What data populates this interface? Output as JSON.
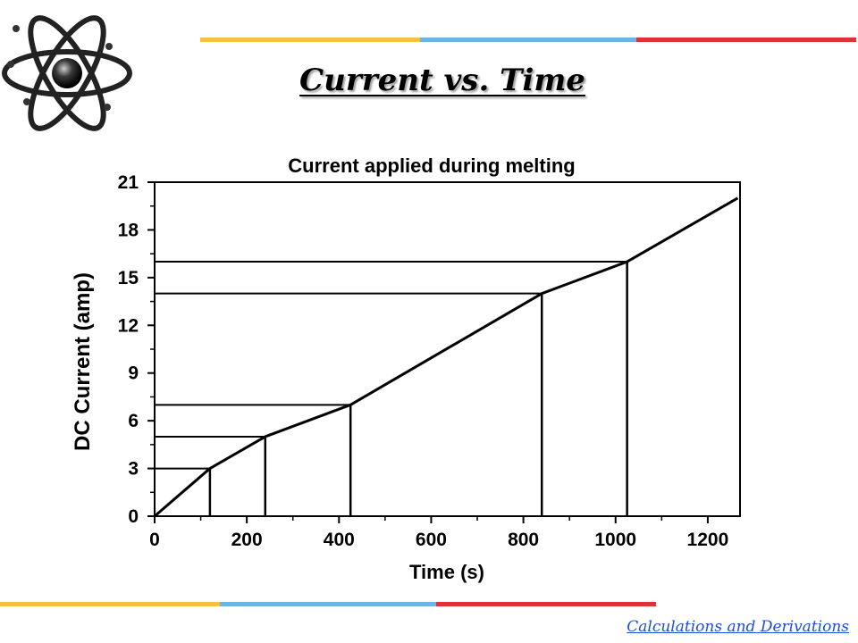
{
  "slide": {
    "title": "Current  vs. Time",
    "footer": "Calculations and Derivations",
    "accent_colors": {
      "yellow": "#f5c342",
      "blue": "#6bb7e2",
      "red": "#e2303a"
    },
    "logo_icon": "atom-icon"
  },
  "chart_data": {
    "type": "line",
    "title": "Current applied during melting",
    "xlabel": "Time (s)",
    "ylabel": "DC Current (amp)",
    "xlim": [
      0,
      1270
    ],
    "ylim": [
      0,
      21
    ],
    "xticks": [
      0,
      200,
      400,
      600,
      800,
      1000,
      1200
    ],
    "yticks": [
      0,
      3,
      6,
      9,
      12,
      15,
      18,
      21
    ],
    "grid": false,
    "series": [
      {
        "x": [
          0,
          120,
          240,
          425,
          840,
          1025,
          1265
        ],
        "y": [
          0,
          3,
          5,
          7,
          14,
          16,
          20
        ]
      }
    ],
    "reference_points": [
      {
        "x": 120,
        "y": 3
      },
      {
        "x": 240,
        "y": 5
      },
      {
        "x": 425,
        "y": 7
      },
      {
        "x": 840,
        "y": 14
      },
      {
        "x": 1025,
        "y": 16
      }
    ]
  }
}
